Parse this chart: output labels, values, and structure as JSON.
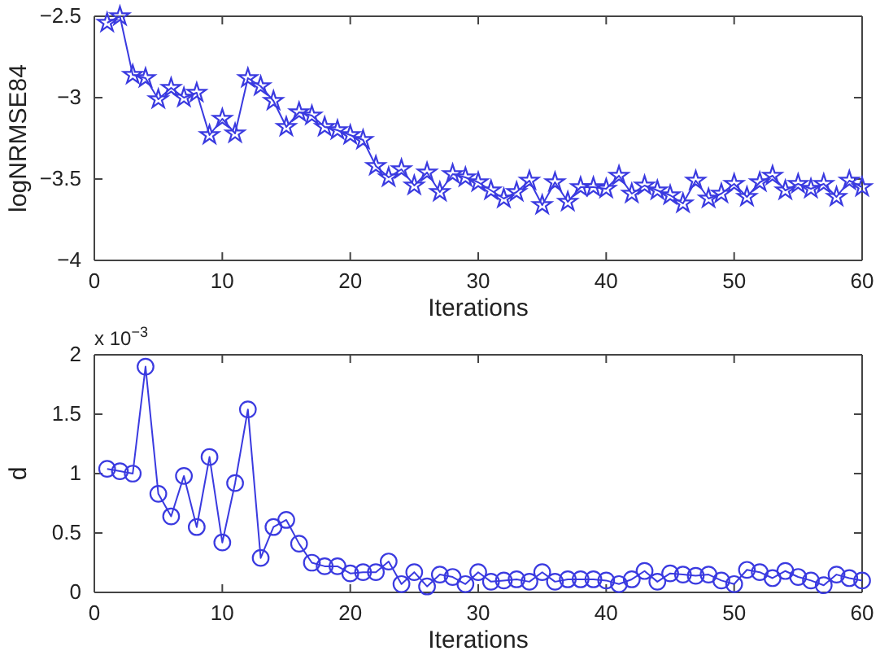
{
  "chart_data": [
    {
      "type": "line",
      "xlabel": "Iterations",
      "ylabel": "logNRMSE84",
      "marker": "star",
      "line_style": "solid",
      "grid": false,
      "x": [
        1,
        2,
        3,
        4,
        5,
        6,
        7,
        8,
        9,
        10,
        11,
        12,
        13,
        14,
        15,
        16,
        17,
        18,
        19,
        20,
        21,
        22,
        23,
        24,
        25,
        26,
        27,
        28,
        29,
        30,
        31,
        32,
        33,
        34,
        35,
        36,
        37,
        38,
        39,
        40,
        41,
        42,
        43,
        44,
        45,
        46,
        47,
        48,
        49,
        50,
        51,
        52,
        53,
        54,
        55,
        56,
        57,
        58,
        59,
        60
      ],
      "series": [
        {
          "color": "#3a3ae0",
          "values": [
            -2.54,
            -2.5,
            -2.86,
            -2.88,
            -3.01,
            -2.94,
            -3.0,
            -2.97,
            -3.23,
            -3.13,
            -3.22,
            -2.88,
            -2.93,
            -3.02,
            -3.18,
            -3.09,
            -3.11,
            -3.18,
            -3.2,
            -3.23,
            -3.26,
            -3.42,
            -3.49,
            -3.44,
            -3.54,
            -3.46,
            -3.58,
            -3.47,
            -3.49,
            -3.52,
            -3.57,
            -3.62,
            -3.58,
            -3.51,
            -3.66,
            -3.52,
            -3.64,
            -3.55,
            -3.55,
            -3.56,
            -3.48,
            -3.59,
            -3.54,
            -3.57,
            -3.6,
            -3.65,
            -3.51,
            -3.62,
            -3.59,
            -3.53,
            -3.61,
            -3.52,
            -3.48,
            -3.57,
            -3.53,
            -3.56,
            -3.53,
            -3.61,
            -3.51,
            -3.55
          ]
        }
      ],
      "xlim": [
        0,
        60
      ],
      "xticks": [
        0,
        10,
        20,
        30,
        40,
        50,
        60
      ],
      "ylim": [
        -4,
        -2.5
      ],
      "yticks": [
        {
          "value": -4,
          "label": "−4"
        },
        {
          "value": -3.5,
          "label": "−3.5"
        },
        {
          "value": -3,
          "label": "−3"
        },
        {
          "value": -2.5,
          "label": "−2.5"
        }
      ]
    },
    {
      "type": "line",
      "xlabel": "Iterations",
      "ylabel": "d",
      "marker": "circle",
      "line_style": "solid",
      "grid": false,
      "annotations": [
        "x 10$^{−3}$"
      ],
      "x": [
        1,
        2,
        3,
        4,
        5,
        6,
        7,
        8,
        9,
        10,
        11,
        12,
        13,
        14,
        15,
        16,
        17,
        18,
        19,
        20,
        21,
        22,
        23,
        24,
        25,
        26,
        27,
        28,
        29,
        30,
        31,
        32,
        33,
        34,
        35,
        36,
        37,
        38,
        39,
        40,
        41,
        42,
        43,
        44,
        45,
        46,
        47,
        48,
        49,
        50,
        51,
        52,
        53,
        54,
        55,
        56,
        57,
        58,
        59,
        60
      ],
      "series": [
        {
          "color": "#3a3ae0",
          "values": [
            1.04,
            1.02,
            1.0,
            1.9,
            0.83,
            0.64,
            0.98,
            0.55,
            1.14,
            0.42,
            0.92,
            1.54,
            0.29,
            0.55,
            0.61,
            0.41,
            0.25,
            0.22,
            0.22,
            0.16,
            0.17,
            0.17,
            0.26,
            0.07,
            0.17,
            0.05,
            0.15,
            0.13,
            0.07,
            0.17,
            0.09,
            0.1,
            0.11,
            0.09,
            0.17,
            0.09,
            0.11,
            0.11,
            0.11,
            0.1,
            0.07,
            0.11,
            0.18,
            0.09,
            0.16,
            0.15,
            0.14,
            0.15,
            0.1,
            0.07,
            0.19,
            0.17,
            0.12,
            0.18,
            0.13,
            0.1,
            0.06,
            0.15,
            0.12,
            0.1
          ]
        }
      ],
      "xlim": [
        0,
        60
      ],
      "xticks": [
        0,
        10,
        20,
        30,
        40,
        50,
        60
      ],
      "ylim": [
        0,
        2
      ],
      "yticks": [
        0,
        0.5,
        1,
        1.5,
        2
      ]
    }
  ]
}
